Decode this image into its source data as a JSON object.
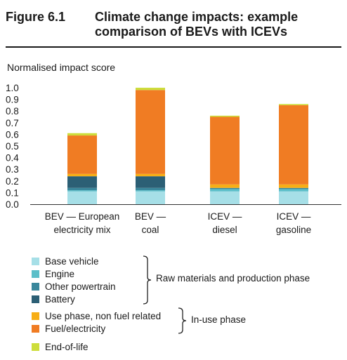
{
  "figure": {
    "label": "Figure 6.1",
    "title": "Climate change impacts: example\ncomparison of BEVs with ICEVs"
  },
  "chart_data": {
    "type": "bar",
    "stacked": true,
    "ylabel": "Normalised impact score",
    "ylim": [
      0,
      1.0
    ],
    "yticks": [
      "0.0",
      "0.1",
      "0.2",
      "0.3",
      "0.4",
      "0.5",
      "0.6",
      "0.7",
      "0.8",
      "0.9",
      "1.0"
    ],
    "categories": [
      [
        "BEV — European",
        "electricity mix"
      ],
      [
        "BEV —",
        "coal"
      ],
      [
        "ICEV —",
        "diesel"
      ],
      [
        "ICEV —",
        "gasoline"
      ]
    ],
    "series": [
      {
        "name": "Base vehicle",
        "color": "#a6dfe7",
        "values": [
          0.11,
          0.11,
          0.11,
          0.11
        ]
      },
      {
        "name": "Engine",
        "color": "#5cbfc9",
        "values": [
          0.01,
          0.01,
          0.02,
          0.02
        ]
      },
      {
        "name": "Other powertrain",
        "color": "#3a879c",
        "values": [
          0.02,
          0.02,
          0.01,
          0.01
        ]
      },
      {
        "name": "Battery",
        "color": "#2c5f75",
        "values": [
          0.1,
          0.1,
          0.0,
          0.0
        ]
      },
      {
        "name": "Use phase, non fuel related",
        "color": "#f7ae16",
        "values": [
          0.02,
          0.02,
          0.03,
          0.03
        ]
      },
      {
        "name": "Fuel/electricity",
        "color": "#f07c23",
        "values": [
          0.33,
          0.72,
          0.58,
          0.68
        ]
      },
      {
        "name": "End-of-life",
        "color": "#cddd3c",
        "values": [
          0.02,
          0.02,
          0.01,
          0.01
        ]
      }
    ]
  },
  "legend_groups": {
    "raw": "Raw materials and production phase",
    "inuse": "In-use phase"
  }
}
